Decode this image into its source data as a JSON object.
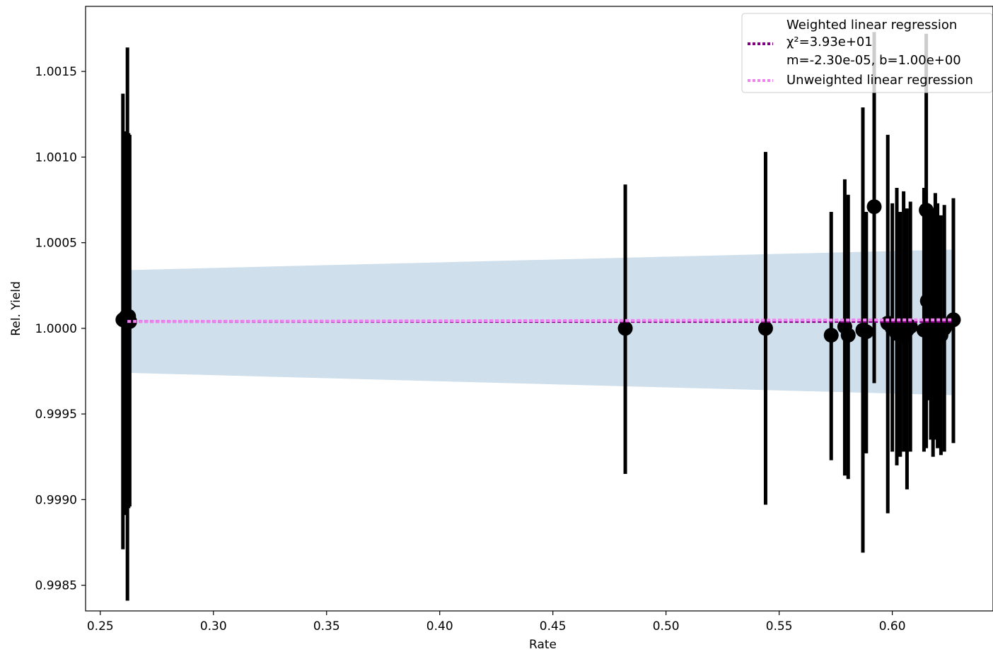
{
  "chart_data": {
    "type": "scatter",
    "title": "",
    "xlabel": "Rate",
    "ylabel": "Rel. Yield",
    "xlim": [
      0.2435,
      0.6445
    ],
    "ylim": [
      0.99835,
      1.00188
    ],
    "grid": false,
    "legend_position": "upper-right",
    "x_ticks": [
      0.25,
      0.3,
      0.35,
      0.4,
      0.45,
      0.5,
      0.55,
      0.6
    ],
    "x_tick_labels": [
      "0.25",
      "0.30",
      "0.35",
      "0.40",
      "0.45",
      "0.50",
      "0.55",
      "0.60"
    ],
    "y_ticks": [
      0.9985,
      0.999,
      0.9995,
      1.0,
      1.0005,
      1.001,
      1.0015
    ],
    "y_tick_labels": [
      "0.9985",
      "0.9990",
      "0.9995",
      "1.0000",
      "1.0005",
      "1.0010",
      "1.0015"
    ],
    "band": {
      "color": "#cfe0ec",
      "points": [
        {
          "x": 0.262,
          "lower": 0.99974,
          "upper": 1.00034
        },
        {
          "x": 0.627,
          "lower": 0.99961,
          "upper": 1.00046
        }
      ]
    },
    "series": [
      {
        "name": "Weighted linear regression",
        "role": "fit",
        "style": "dotted",
        "color": "#800080",
        "x": [
          0.262,
          0.627
        ],
        "y": [
          1.00004,
          1.00004
        ]
      },
      {
        "name": "Unweighted linear regression",
        "role": "fit",
        "style": "dotted",
        "color": "#ee82ee",
        "x": [
          0.262,
          0.627
        ],
        "y": [
          1.00004,
          1.00005
        ]
      },
      {
        "role": "data",
        "marker": "circle",
        "color": "#000000",
        "points": [
          {
            "x": 0.26,
            "y": 1.00005,
            "yerr_low": 0.99871,
            "yerr_high": 1.00137
          },
          {
            "x": 0.261,
            "y": 1.00005,
            "yerr_low": 0.99891,
            "yerr_high": 1.00115
          },
          {
            "x": 0.2615,
            "y": 1.00007,
            "yerr_low": 0.99895,
            "yerr_high": 1.00113
          },
          {
            "x": 0.262,
            "y": 1.00006,
            "yerr_low": 0.99841,
            "yerr_high": 1.00164
          },
          {
            "x": 0.2625,
            "y": 1.00007,
            "yerr_low": 0.99895,
            "yerr_high": 1.00114
          },
          {
            "x": 0.263,
            "y": 1.00004,
            "yerr_low": 0.99896,
            "yerr_high": 1.00113
          },
          {
            "x": 0.482,
            "y": 1.0,
            "yerr_low": 0.99915,
            "yerr_high": 1.00084
          },
          {
            "x": 0.544,
            "y": 1.0,
            "yerr_low": 0.99897,
            "yerr_high": 1.00103
          },
          {
            "x": 0.573,
            "y": 0.99996,
            "yerr_low": 0.99923,
            "yerr_high": 1.00068
          },
          {
            "x": 0.579,
            "y": 1.00001,
            "yerr_low": 0.99914,
            "yerr_high": 1.00087
          },
          {
            "x": 0.5805,
            "y": 0.99996,
            "yerr_low": 0.99912,
            "yerr_high": 1.00078
          },
          {
            "x": 0.587,
            "y": 0.99999,
            "yerr_low": 0.99869,
            "yerr_high": 1.00129
          },
          {
            "x": 0.5885,
            "y": 0.99998,
            "yerr_low": 0.99927,
            "yerr_high": 1.00068
          },
          {
            "x": 0.592,
            "y": 1.00071,
            "yerr_low": 0.99968,
            "yerr_high": 1.00173
          },
          {
            "x": 0.598,
            "y": 1.00003,
            "yerr_low": 0.99892,
            "yerr_high": 1.00113
          },
          {
            "x": 0.6,
            "y": 1.0,
            "yerr_low": 0.99928,
            "yerr_high": 1.00073
          },
          {
            "x": 0.602,
            "y": 0.99997,
            "yerr_low": 0.9992,
            "yerr_high": 1.00082
          },
          {
            "x": 0.6035,
            "y": 1.00002,
            "yerr_low": 0.99925,
            "yerr_high": 1.00068
          },
          {
            "x": 0.605,
            "y": 0.99996,
            "yerr_low": 0.99928,
            "yerr_high": 1.0008
          },
          {
            "x": 0.6065,
            "y": 0.99999,
            "yerr_low": 0.99906,
            "yerr_high": 1.0007
          },
          {
            "x": 0.608,
            "y": 1.00001,
            "yerr_low": 0.99928,
            "yerr_high": 1.00074
          },
          {
            "x": 0.614,
            "y": 0.99999,
            "yerr_low": 0.99928,
            "yerr_high": 1.00082
          },
          {
            "x": 0.615,
            "y": 1.00069,
            "yerr_low": 0.9993,
            "yerr_high": 1.00172
          },
          {
            "x": 0.6155,
            "y": 1.00016,
            "yerr_low": 0.99958,
            "yerr_high": 1.00068
          },
          {
            "x": 0.617,
            "y": 1.00001,
            "yerr_low": 0.99935,
            "yerr_high": 1.00068
          },
          {
            "x": 0.618,
            "y": 0.99998,
            "yerr_low": 0.99925,
            "yerr_high": 1.0007
          },
          {
            "x": 0.619,
            "y": 1.00004,
            "yerr_low": 0.99935,
            "yerr_high": 1.00079
          },
          {
            "x": 0.62,
            "y": 1.0,
            "yerr_low": 0.9993,
            "yerr_high": 1.00073
          },
          {
            "x": 0.6215,
            "y": 0.99996,
            "yerr_low": 0.99926,
            "yerr_high": 1.00066
          },
          {
            "x": 0.623,
            "y": 1.0,
            "yerr_low": 0.99928,
            "yerr_high": 1.00072
          },
          {
            "x": 0.627,
            "y": 1.00005,
            "yerr_low": 0.99933,
            "yerr_high": 1.00076
          }
        ]
      }
    ],
    "legend": [
      {
        "lines": [
          "Weighted linear regression",
          "χ²=3.93e+01",
          "m=-2.30e-05, b=1.00e+00"
        ],
        "color": "#800080"
      },
      {
        "lines": [
          "Unweighted linear regression"
        ],
        "color": "#ee82ee"
      }
    ]
  }
}
